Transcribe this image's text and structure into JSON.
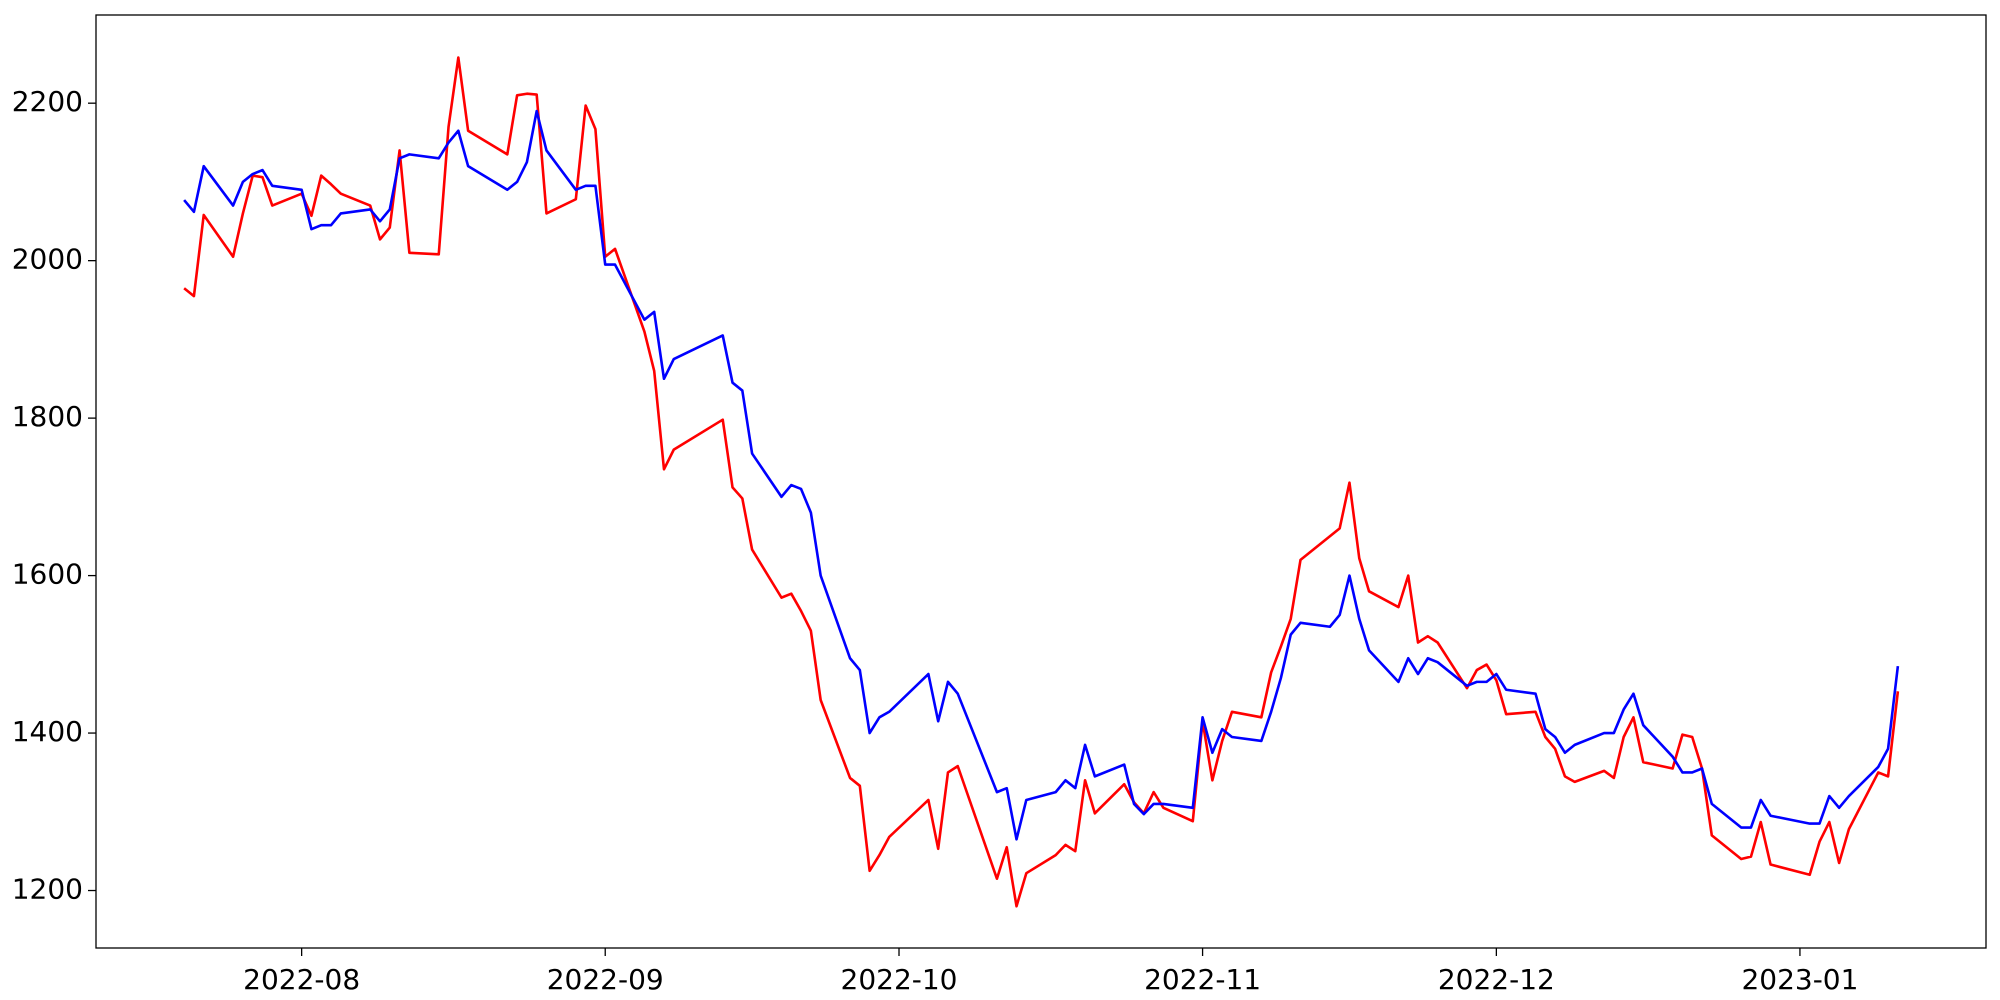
{
  "chart_data": {
    "type": "line",
    "x": [
      "2022-07-20",
      "2022-07-21",
      "2022-07-22",
      "2022-07-25",
      "2022-07-26",
      "2022-07-27",
      "2022-07-28",
      "2022-07-29",
      "2022-08-01",
      "2022-08-02",
      "2022-08-03",
      "2022-08-04",
      "2022-08-05",
      "2022-08-08",
      "2022-08-09",
      "2022-08-10",
      "2022-08-11",
      "2022-08-12",
      "2022-08-15",
      "2022-08-16",
      "2022-08-17",
      "2022-08-18",
      "2022-08-22",
      "2022-08-23",
      "2022-08-24",
      "2022-08-25",
      "2022-08-26",
      "2022-08-29",
      "2022-08-30",
      "2022-08-31",
      "2022-09-01",
      "2022-09-02",
      "2022-09-05",
      "2022-09-06",
      "2022-09-07",
      "2022-09-08",
      "2022-09-13",
      "2022-09-14",
      "2022-09-15",
      "2022-09-16",
      "2022-09-19",
      "2022-09-20",
      "2022-09-21",
      "2022-09-22",
      "2022-09-23",
      "2022-09-26",
      "2022-09-27",
      "2022-09-28",
      "2022-09-29",
      "2022-09-30",
      "2022-10-04",
      "2022-10-05",
      "2022-10-06",
      "2022-10-07",
      "2022-10-11",
      "2022-10-12",
      "2022-10-13",
      "2022-10-14",
      "2022-10-17",
      "2022-10-18",
      "2022-10-19",
      "2022-10-20",
      "2022-10-21",
      "2022-10-24",
      "2022-10-25",
      "2022-10-26",
      "2022-10-27",
      "2022-10-28",
      "2022-10-31",
      "2022-11-01",
      "2022-11-02",
      "2022-11-03",
      "2022-11-04",
      "2022-11-07",
      "2022-11-08",
      "2022-11-09",
      "2022-11-10",
      "2022-11-11",
      "2022-11-14",
      "2022-11-15",
      "2022-11-16",
      "2022-11-17",
      "2022-11-18",
      "2022-11-21",
      "2022-11-22",
      "2022-11-23",
      "2022-11-24",
      "2022-11-25",
      "2022-11-28",
      "2022-11-29",
      "2022-11-30",
      "2022-12-01",
      "2022-12-02",
      "2022-12-05",
      "2022-12-06",
      "2022-12-07",
      "2022-12-08",
      "2022-12-09",
      "2022-12-12",
      "2022-12-13",
      "2022-12-14",
      "2022-12-15",
      "2022-12-16",
      "2022-12-19",
      "2022-12-20",
      "2022-12-21",
      "2022-12-22",
      "2022-12-23",
      "2022-12-26",
      "2022-12-27",
      "2022-12-28",
      "2022-12-29",
      "2023-01-02",
      "2023-01-03",
      "2023-01-04",
      "2023-01-05",
      "2023-01-06",
      "2023-01-09",
      "2023-01-10",
      "2023-01-11"
    ],
    "series": [
      {
        "color": "#ff0000",
        "values": [
          1965,
          1955,
          2058,
          2005,
          2060,
          2108,
          2106,
          2070,
          2085,
          2057,
          2108,
          2097,
          2085,
          2070,
          2027,
          2042,
          2140,
          2010,
          2008,
          2170,
          2258,
          2165,
          2135,
          2210,
          2212,
          2211,
          2060,
          2078,
          2197,
          2167,
          2005,
          2015,
          1910,
          1860,
          1735,
          1760,
          1798,
          1712,
          1698,
          1633,
          1572,
          1577,
          1555,
          1530,
          1442,
          1343,
          1333,
          1225,
          1245,
          1268,
          1315,
          1253,
          1350,
          1358,
          1215,
          1255,
          1180,
          1222,
          1245,
          1258,
          1250,
          1340,
          1298,
          1335,
          1312,
          1298,
          1325,
          1305,
          1288,
          1415,
          1340,
          1390,
          1427,
          1420,
          1477,
          1510,
          1545,
          1620,
          1650,
          1660,
          1718,
          1622,
          1580,
          1560,
          1600,
          1515,
          1523,
          1515,
          1457,
          1480,
          1487,
          1467,
          1424,
          1427,
          1395,
          1380,
          1345,
          1338,
          1352,
          1343,
          1395,
          1420,
          1363,
          1355,
          1398,
          1395,
          1355,
          1270,
          1240,
          1243,
          1287,
          1233,
          1220,
          1262,
          1287,
          1235,
          1278,
          1350,
          1345,
          1453
        ]
      },
      {
        "color": "#0000ff",
        "values": [
          2077,
          2062,
          2120,
          2070,
          2100,
          2110,
          2115,
          2095,
          2090,
          2040,
          2045,
          2045,
          2060,
          2065,
          2050,
          2065,
          2130,
          2135,
          2130,
          2150,
          2165,
          2120,
          2090,
          2100,
          2125,
          2190,
          2140,
          2090,
          2095,
          2095,
          1995,
          1995,
          1925,
          1935,
          1850,
          1875,
          1905,
          1845,
          1835,
          1755,
          1700,
          1715,
          1710,
          1680,
          1600,
          1495,
          1480,
          1400,
          1420,
          1427,
          1475,
          1415,
          1465,
          1450,
          1325,
          1330,
          1265,
          1315,
          1325,
          1340,
          1330,
          1385,
          1345,
          1360,
          1310,
          1297,
          1310,
          1310,
          1305,
          1420,
          1375,
          1405,
          1395,
          1390,
          1427,
          1470,
          1525,
          1540,
          1535,
          1550,
          1600,
          1545,
          1505,
          1465,
          1495,
          1475,
          1495,
          1490,
          1460,
          1465,
          1465,
          1475,
          1455,
          1450,
          1405,
          1395,
          1375,
          1385,
          1400,
          1400,
          1430,
          1450,
          1410,
          1370,
          1350,
          1350,
          1355,
          1310,
          1280,
          1280,
          1315,
          1295,
          1285,
          1285,
          1320,
          1305,
          1320,
          1357,
          1380,
          1485
        ]
      }
    ],
    "xlim": [
      "2022-07-11",
      "2023-01-20"
    ],
    "xticks": [
      {
        "value": "2022-08-01",
        "label": "2022-08"
      },
      {
        "value": "2022-09-01",
        "label": "2022-09"
      },
      {
        "value": "2022-10-01",
        "label": "2022-10"
      },
      {
        "value": "2022-11-01",
        "label": "2022-11"
      },
      {
        "value": "2022-12-01",
        "label": "2022-12"
      },
      {
        "value": "2023-01-01",
        "label": "2023-01"
      }
    ],
    "ylim": [
      1127,
      2312
    ],
    "yticks": [
      1200,
      1400,
      1600,
      1800,
      2000,
      2200
    ],
    "grid": false
  }
}
